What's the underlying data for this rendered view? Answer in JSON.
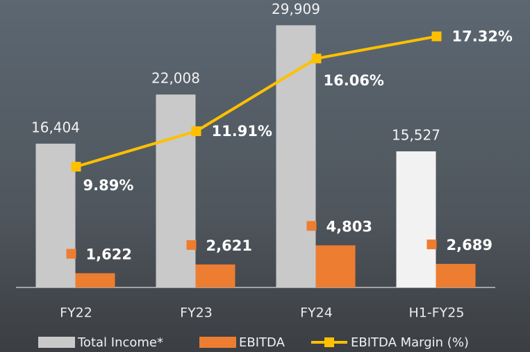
{
  "chart_data": {
    "type": "bar",
    "categories": [
      "FY22",
      "FY23",
      "FY24",
      "H1-FY25"
    ],
    "ylim": [
      0,
      32000
    ],
    "y2lim": [
      3,
      19
    ],
    "series": [
      {
        "name": "Total Income*",
        "color": "#c9c9c9",
        "colors": [
          "#c9c9c9",
          "#c9c9c9",
          "#c9c9c9",
          "#f2f2f2"
        ],
        "values": [
          16404,
          22008,
          29909,
          15527
        ],
        "value_labels": [
          "16,404",
          "22,008",
          "29,909",
          "15,527"
        ]
      },
      {
        "name": "EBITDA",
        "color": "#ed7d31",
        "values": [
          1622,
          2621,
          4803,
          2689
        ],
        "value_labels": [
          "1,622",
          "2,621",
          "4,803",
          "2,689"
        ]
      },
      {
        "name": "EBITDA Margin (%)",
        "type": "line",
        "axis": "y2",
        "color": "#ffc000",
        "values": [
          9.89,
          11.91,
          16.06,
          17.32
        ],
        "value_labels": [
          "9.89%",
          "11.91%",
          "16.06%",
          "17.32%"
        ]
      }
    ]
  }
}
